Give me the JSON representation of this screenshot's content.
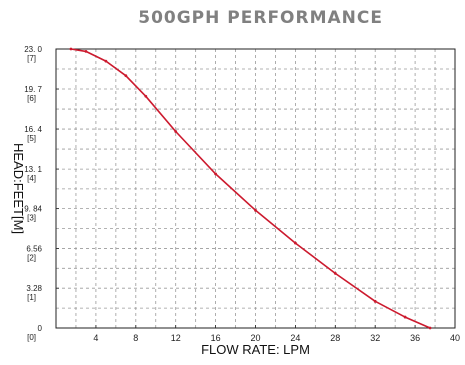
{
  "chart_data": {
    "type": "line",
    "title": "500GPH PERFORMANCE",
    "xlabel": "FLOW RATE: LPM",
    "ylabel": "HEAD:FEET[M]",
    "xlim": [
      0,
      40
    ],
    "ylim": [
      0,
      23.0
    ],
    "x_ticks": [
      {
        "value": 4,
        "label": "4"
      },
      {
        "value": 8,
        "label": "8"
      },
      {
        "value": 12,
        "label": "12"
      },
      {
        "value": 16,
        "label": "16"
      },
      {
        "value": 20,
        "label": "20"
      },
      {
        "value": 24,
        "label": "24"
      },
      {
        "value": 28,
        "label": "28"
      },
      {
        "value": 32,
        "label": "32"
      },
      {
        "value": 36,
        "label": "36"
      },
      {
        "value": 40,
        "label": "40"
      }
    ],
    "y_ticks": [
      {
        "value": 0,
        "label": "0",
        "sublabel": "[0]"
      },
      {
        "value": 3.28,
        "label": "3.28",
        "sublabel": "[1]"
      },
      {
        "value": 6.56,
        "label": "6.56",
        "sublabel": "[2]"
      },
      {
        "value": 9.84,
        "label": "9. 84",
        "sublabel": "[3]"
      },
      {
        "value": 13.1,
        "label": "13. 1",
        "sublabel": "[4]"
      },
      {
        "value": 16.4,
        "label": "16. 4",
        "sublabel": "[5]"
      },
      {
        "value": 19.7,
        "label": "19. 7",
        "sublabel": "[6]"
      },
      {
        "value": 23.0,
        "label": "23. 0",
        "sublabel": "[7]"
      }
    ],
    "grid": true,
    "series": [
      {
        "color": "#cc1a2e",
        "x": [
          1.5,
          3,
          5,
          7,
          9,
          12,
          16,
          20,
          24,
          28,
          32,
          35,
          37.5
        ],
        "y": [
          23.0,
          22.8,
          22.0,
          20.8,
          19.1,
          16.2,
          12.7,
          9.7,
          7.0,
          4.5,
          2.2,
          0.9,
          0.0
        ]
      }
    ]
  }
}
